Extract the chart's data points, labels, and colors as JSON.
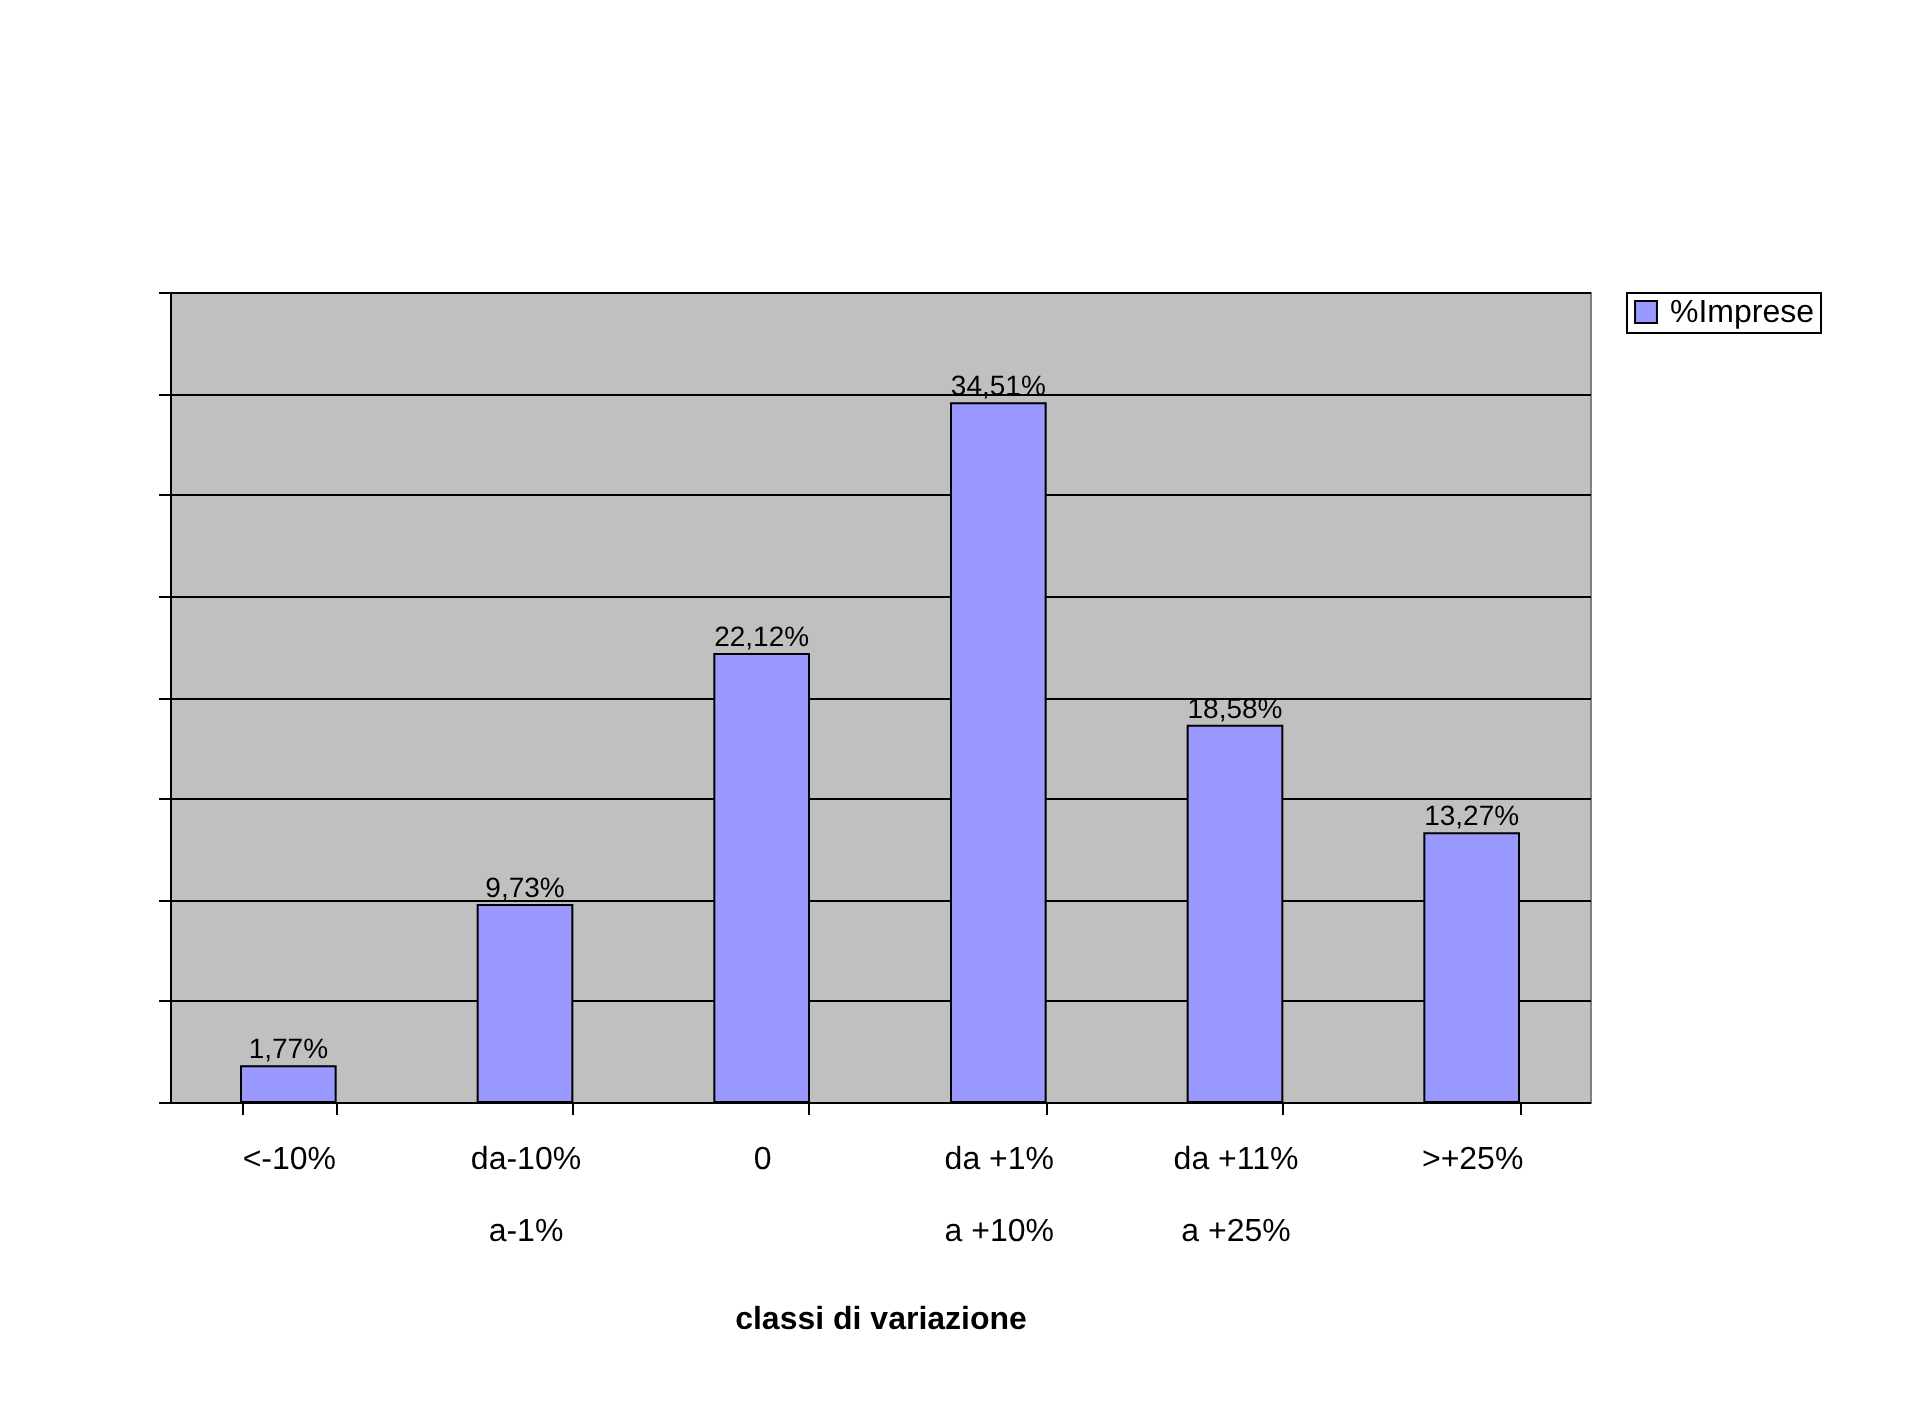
{
  "chart_data": {
    "type": "bar",
    "xlabel": "classi di variazione",
    "categories": [
      "<-10%",
      "da-10%\na-1%",
      "0",
      "da +1%\na +10%",
      "da +11%\na +25%",
      ">+25%"
    ],
    "series": [
      {
        "name": "%Imprese",
        "color": "#9999ff",
        "values": [
          1.77,
          9.73,
          22.12,
          34.51,
          18.58,
          13.27
        ],
        "value_labels": [
          "1,77%",
          "9,73%",
          "22,12%",
          "34,51%",
          "18,58%",
          "13,27%"
        ]
      }
    ],
    "ylim": [
      0,
      40
    ],
    "yticks": [
      {
        "value": 0,
        "label": null
      },
      {
        "value": 5,
        "label": null
      },
      {
        "value": 10,
        "label": null
      },
      {
        "value": 15,
        "label": null
      },
      {
        "value": 20,
        "label": null
      },
      {
        "value": 25,
        "label": null
      },
      {
        "value": 30,
        "label": null
      },
      {
        "value": 35,
        "label": null
      },
      {
        "value": 40,
        "label": null
      }
    ],
    "tick_labels": "x",
    "grid": "y",
    "legend": "right"
  }
}
